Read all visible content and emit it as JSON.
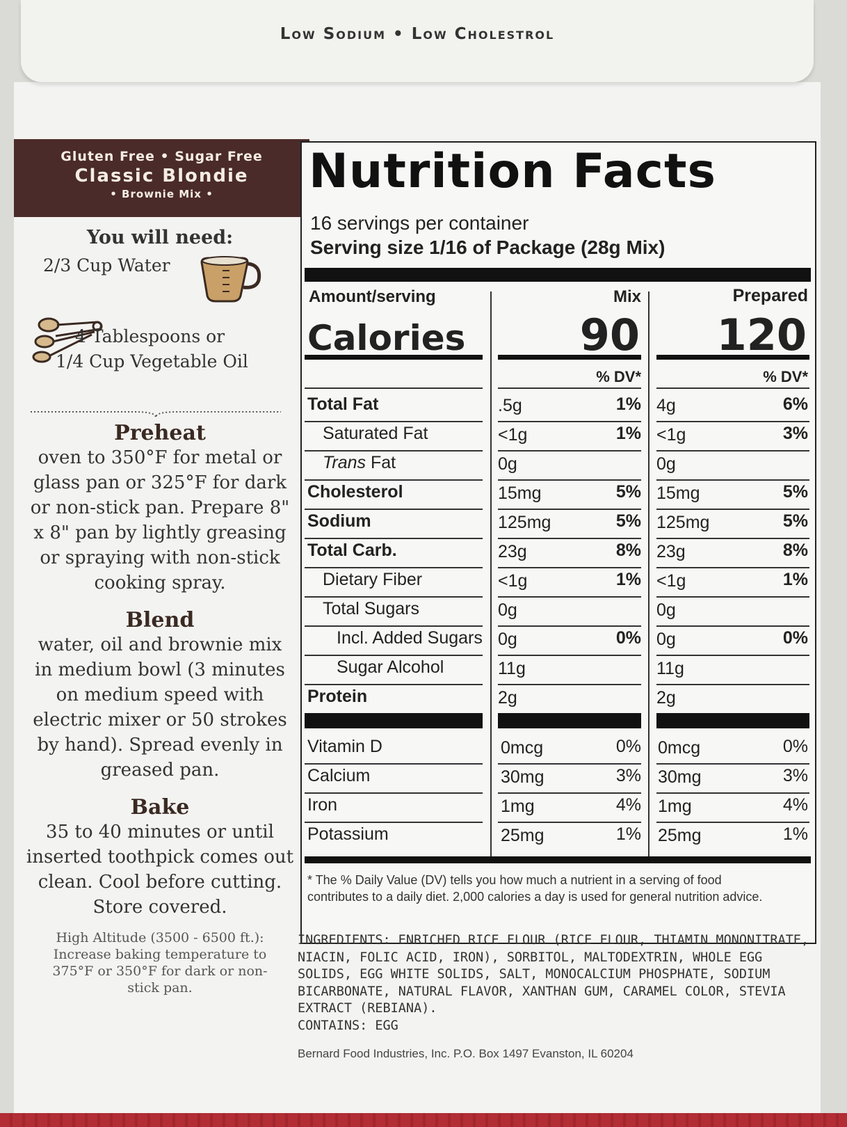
{
  "flap": {
    "text": "Low Sodium • Low Cholestrol"
  },
  "brand": {
    "line1": "Gluten Free • Sugar Free",
    "line2": "Classic Blondie",
    "line3": "• Brownie Mix •"
  },
  "need": {
    "title": "You will need:",
    "item1": "2/3 Cup Water",
    "item2": "4 Tablespoons or",
    "item3": "1/4 Cup Vegetable Oil",
    "icon1": "measuring-cup-icon",
    "icon2": "measuring-spoons-icon"
  },
  "preheat": {
    "title": "Preheat",
    "body": "oven to 350°F for metal or glass pan or 325°F for dark or non-stick pan. Prepare 8\" x 8\" pan by lightly greasing or spraying with non-stick cooking spray."
  },
  "blend": {
    "title": "Blend",
    "body": "water, oil and brownie mix in medium bowl (3 minutes on medium speed with electric mixer or 50 strokes by hand). Spread evenly in greased pan."
  },
  "bake": {
    "title": "Bake",
    "body": "35 to 40 minutes or until inserted toothpick comes out clean. Cool before cutting. Store covered."
  },
  "altitude": "High Altitude (3500 - 6500 ft.): Increase baking temperature to 375°F or 350°F for dark or non-stick pan.",
  "nutrition": {
    "title": "Nutrition Facts",
    "servings": "16 servings per container",
    "serving_size": "Serving size  1/16 of Package (28g Mix)",
    "amount_label": "Amount/serving",
    "mix_label": "Mix",
    "prepared_label": "Prepared",
    "calories_label": "Calories",
    "calories_mix": "90",
    "calories_prepared": "120",
    "dv_label": "% DV*",
    "rows": [
      {
        "name": "Total Fat",
        "mix": ".5g",
        "mix_dv": "1%",
        "prep": "4g",
        "prep_dv": "6%"
      },
      {
        "name": "Saturated Fat",
        "mix": "<1g",
        "mix_dv": "1%",
        "prep": "<1g",
        "prep_dv": "3%"
      },
      {
        "name": "Trans",
        "name2": " Fat",
        "mix": "0g",
        "mix_dv": "",
        "prep": "0g",
        "prep_dv": ""
      },
      {
        "name": "Cholesterol",
        "mix": "15mg",
        "mix_dv": "5%",
        "prep": "15mg",
        "prep_dv": "5%"
      },
      {
        "name": "Sodium",
        "mix": "125mg",
        "mix_dv": "5%",
        "prep": "125mg",
        "prep_dv": "5%"
      },
      {
        "name": "Total Carb.",
        "mix": "23g",
        "mix_dv": "8%",
        "prep": "23g",
        "prep_dv": "8%"
      },
      {
        "name": "Dietary Fiber",
        "mix": "<1g",
        "mix_dv": "1%",
        "prep": "<1g",
        "prep_dv": "1%"
      },
      {
        "name": "Total Sugars",
        "mix": "0g",
        "mix_dv": "",
        "prep": "0g",
        "prep_dv": ""
      },
      {
        "name": "Incl. Added Sugars",
        "mix": "0g",
        "mix_dv": "0%",
        "prep": "0g",
        "prep_dv": "0%"
      },
      {
        "name": "Sugar Alcohol",
        "mix": "11g",
        "mix_dv": "",
        "prep": "11g",
        "prep_dv": ""
      },
      {
        "name": "Protein",
        "mix": "2g",
        "mix_dv": "",
        "prep": "2g",
        "prep_dv": ""
      }
    ],
    "vitamins": [
      {
        "name": "Vitamin D",
        "mix": "0mcg",
        "mix_dv": "0%",
        "prep": "0mcg",
        "prep_dv": "0%"
      },
      {
        "name": "Calcium",
        "mix": "30mg",
        "mix_dv": "3%",
        "prep": "30mg",
        "prep_dv": "3%"
      },
      {
        "name": "Iron",
        "mix": "1mg",
        "mix_dv": "4%",
        "prep": "1mg",
        "prep_dv": "4%"
      },
      {
        "name": "Potassium",
        "mix": "25mg",
        "mix_dv": "1%",
        "prep": "25mg",
        "prep_dv": "1%"
      }
    ],
    "footnote": "* The % Daily Value (DV) tells you how much a nutrient in a serving of food contributes to a daily diet. 2,000 calories a day is used for general nutrition advice."
  },
  "ingredients": "INGREDIENTS: ENRICHED RICE FLOUR (RICE FLOUR, THIAMIN MONONITRATE, NIACIN, FOLIC ACID, IRON), SORBITOL, MALTODEXTRIN, WHOLE EGG SOLIDS, EGG WHITE SOLIDS, SALT, MONOCALCIUM PHOSPHATE, SODIUM BICARBONATE, NATURAL FLAVOR, XANTHAN GUM, CARAMEL COLOR, STEVIA EXTRACT (REBIANA).",
  "contains": "CONTAINS: EGG",
  "company": "Bernard Food Industries, Inc.  P.O. Box 1497 Evanston, IL 60204"
}
